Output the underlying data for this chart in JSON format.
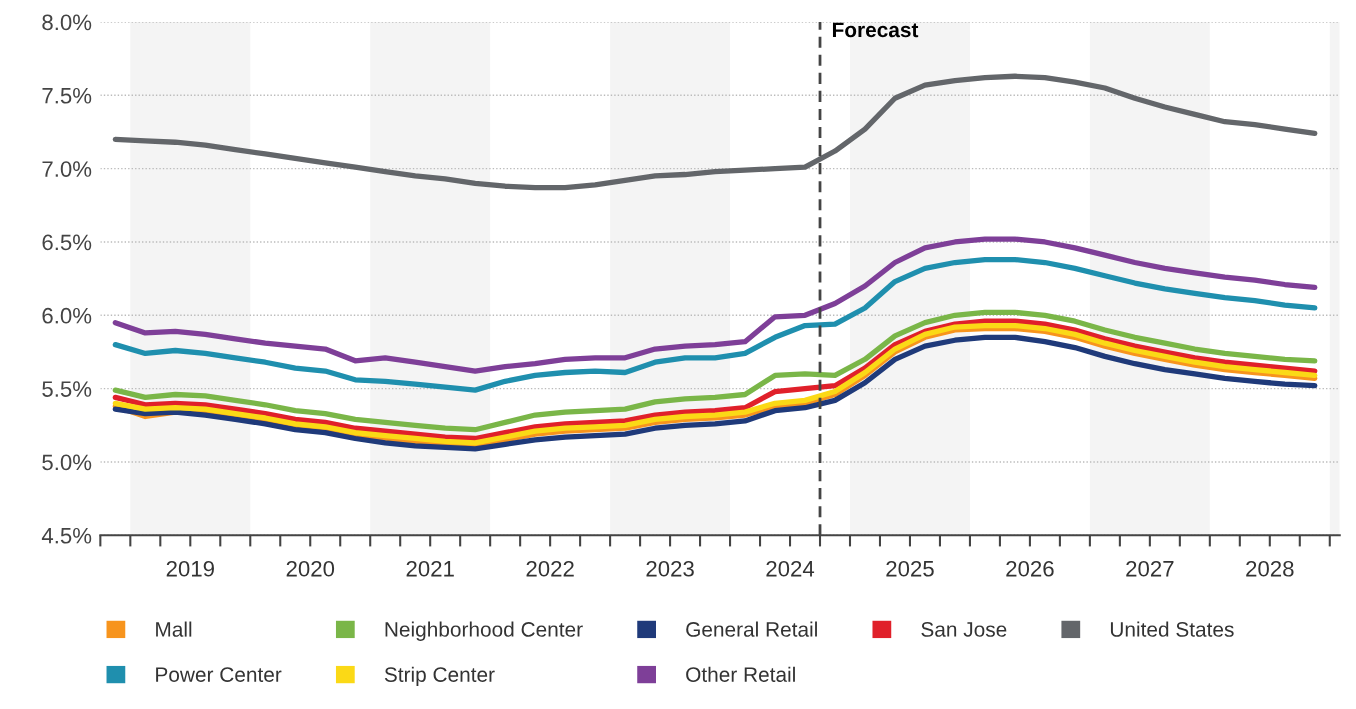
{
  "chart_data": {
    "type": "line",
    "x": [
      2018.875,
      2019.125,
      2019.375,
      2019.625,
      2019.875,
      2020.125,
      2020.375,
      2020.625,
      2020.875,
      2021.125,
      2021.375,
      2021.625,
      2021.875,
      2022.125,
      2022.375,
      2022.625,
      2022.875,
      2023.125,
      2023.375,
      2023.625,
      2023.875,
      2024.125,
      2024.375,
      2024.625,
      2024.875,
      2025.125,
      2025.375,
      2025.625,
      2025.875,
      2026.125,
      2026.375,
      2026.625,
      2026.875,
      2027.125,
      2027.375,
      2027.625,
      2027.875,
      2028.125,
      2028.375,
      2028.625,
      2028.875
    ],
    "series": [
      {
        "name": "Mall",
        "color": "#f7941d",
        "values": [
          5.38,
          5.31,
          5.34,
          5.34,
          5.31,
          5.28,
          5.24,
          5.22,
          5.18,
          5.16,
          5.14,
          5.12,
          5.11,
          5.15,
          5.19,
          5.21,
          5.22,
          5.23,
          5.27,
          5.29,
          5.3,
          5.32,
          5.38,
          5.4,
          5.46,
          5.59,
          5.75,
          5.85,
          5.9,
          5.91,
          5.91,
          5.89,
          5.85,
          5.79,
          5.74,
          5.7,
          5.66,
          5.63,
          5.61,
          5.59,
          5.57
        ]
      },
      {
        "name": "Neighborhood Center",
        "color": "#7ab648",
        "values": [
          5.49,
          5.44,
          5.46,
          5.45,
          5.42,
          5.39,
          5.35,
          5.33,
          5.29,
          5.27,
          5.25,
          5.23,
          5.22,
          5.27,
          5.32,
          5.34,
          5.35,
          5.36,
          5.41,
          5.43,
          5.44,
          5.46,
          5.59,
          5.6,
          5.59,
          5.7,
          5.86,
          5.95,
          6.0,
          6.02,
          6.02,
          6.0,
          5.96,
          5.9,
          5.85,
          5.81,
          5.77,
          5.74,
          5.72,
          5.7,
          5.69
        ]
      },
      {
        "name": "General Retail",
        "color": "#1f3a7a",
        "values": [
          5.36,
          5.33,
          5.34,
          5.32,
          5.29,
          5.26,
          5.22,
          5.2,
          5.16,
          5.13,
          5.11,
          5.1,
          5.09,
          5.12,
          5.15,
          5.17,
          5.18,
          5.19,
          5.23,
          5.25,
          5.26,
          5.28,
          5.35,
          5.37,
          5.42,
          5.54,
          5.7,
          5.79,
          5.83,
          5.85,
          5.85,
          5.82,
          5.78,
          5.72,
          5.67,
          5.63,
          5.6,
          5.57,
          5.55,
          5.53,
          5.52
        ]
      },
      {
        "name": "San Jose",
        "color": "#e0202a",
        "values": [
          5.44,
          5.39,
          5.4,
          5.39,
          5.36,
          5.33,
          5.29,
          5.27,
          5.23,
          5.21,
          5.19,
          5.17,
          5.16,
          5.2,
          5.24,
          5.26,
          5.27,
          5.28,
          5.32,
          5.34,
          5.35,
          5.37,
          5.48,
          5.5,
          5.52,
          5.64,
          5.8,
          5.89,
          5.94,
          5.96,
          5.96,
          5.94,
          5.9,
          5.84,
          5.79,
          5.75,
          5.71,
          5.68,
          5.66,
          5.64,
          5.62
        ]
      },
      {
        "name": "United States",
        "color": "#63666a",
        "values": [
          7.2,
          7.19,
          7.18,
          7.16,
          7.13,
          7.1,
          7.07,
          7.04,
          7.01,
          6.98,
          6.95,
          6.93,
          6.9,
          6.88,
          6.87,
          6.87,
          6.89,
          6.92,
          6.95,
          6.96,
          6.98,
          6.99,
          7.0,
          7.01,
          7.12,
          7.27,
          7.48,
          7.57,
          7.6,
          7.62,
          7.63,
          7.62,
          7.59,
          7.55,
          7.48,
          7.42,
          7.37,
          7.32,
          7.3,
          7.27,
          7.24
        ]
      },
      {
        "name": "Power Center",
        "color": "#1f8fae",
        "values": [
          5.8,
          5.74,
          5.76,
          5.74,
          5.71,
          5.68,
          5.64,
          5.62,
          5.56,
          5.55,
          5.53,
          5.51,
          5.49,
          5.55,
          5.59,
          5.61,
          5.62,
          5.61,
          5.68,
          5.71,
          5.71,
          5.74,
          5.85,
          5.93,
          5.94,
          6.05,
          6.23,
          6.32,
          6.36,
          6.38,
          6.38,
          6.36,
          6.32,
          6.27,
          6.22,
          6.18,
          6.15,
          6.12,
          6.1,
          6.07,
          6.05
        ]
      },
      {
        "name": "Strip Center",
        "color": "#fbd916",
        "values": [
          5.4,
          5.36,
          5.37,
          5.36,
          5.33,
          5.3,
          5.26,
          5.24,
          5.2,
          5.18,
          5.16,
          5.14,
          5.13,
          5.17,
          5.21,
          5.23,
          5.24,
          5.25,
          5.29,
          5.31,
          5.32,
          5.34,
          5.4,
          5.42,
          5.48,
          5.61,
          5.77,
          5.87,
          5.92,
          5.93,
          5.93,
          5.91,
          5.87,
          5.81,
          5.76,
          5.72,
          5.68,
          5.65,
          5.63,
          5.61,
          5.59
        ]
      },
      {
        "name": "Other Retail",
        "color": "#7e3f98",
        "values": [
          5.95,
          5.88,
          5.89,
          5.87,
          5.84,
          5.81,
          5.79,
          5.77,
          5.69,
          5.71,
          5.68,
          5.65,
          5.62,
          5.65,
          5.67,
          5.7,
          5.71,
          5.71,
          5.77,
          5.79,
          5.8,
          5.82,
          5.99,
          6.0,
          6.08,
          6.2,
          6.36,
          6.46,
          6.5,
          6.52,
          6.52,
          6.5,
          6.46,
          6.41,
          6.36,
          6.32,
          6.29,
          6.26,
          6.24,
          6.21,
          6.19
        ]
      }
    ],
    "xlim": [
      2018.75,
      2029.083
    ],
    "xticks": [
      {
        "value": 2018.75,
        "label": null
      },
      {
        "value": 2019.0,
        "label": null
      },
      {
        "value": 2019.25,
        "label": null
      },
      {
        "value": 2019.5,
        "label": "2019"
      },
      {
        "value": 2019.75,
        "label": null
      },
      {
        "value": 2020.0,
        "label": null
      },
      {
        "value": 2020.25,
        "label": null
      },
      {
        "value": 2020.5,
        "label": "2020"
      },
      {
        "value": 2020.75,
        "label": null
      },
      {
        "value": 2021.0,
        "label": null
      },
      {
        "value": 2021.25,
        "label": null
      },
      {
        "value": 2021.5,
        "label": "2021"
      },
      {
        "value": 2021.75,
        "label": null
      },
      {
        "value": 2022.0,
        "label": null
      },
      {
        "value": 2022.25,
        "label": null
      },
      {
        "value": 2022.5,
        "label": "2022"
      },
      {
        "value": 2022.75,
        "label": null
      },
      {
        "value": 2023.0,
        "label": null
      },
      {
        "value": 2023.25,
        "label": null
      },
      {
        "value": 2023.5,
        "label": "2023"
      },
      {
        "value": 2023.75,
        "label": null
      },
      {
        "value": 2024.0,
        "label": null
      },
      {
        "value": 2024.25,
        "label": null
      },
      {
        "value": 2024.5,
        "label": "2024"
      },
      {
        "value": 2024.75,
        "label": null
      },
      {
        "value": 2025.0,
        "label": null
      },
      {
        "value": 2025.25,
        "label": null
      },
      {
        "value": 2025.5,
        "label": "2025"
      },
      {
        "value": 2025.75,
        "label": null
      },
      {
        "value": 2026.0,
        "label": null
      },
      {
        "value": 2026.25,
        "label": null
      },
      {
        "value": 2026.5,
        "label": "2026"
      },
      {
        "value": 2026.75,
        "label": null
      },
      {
        "value": 2027.0,
        "label": null
      },
      {
        "value": 2027.25,
        "label": null
      },
      {
        "value": 2027.5,
        "label": "2027"
      },
      {
        "value": 2027.75,
        "label": null
      },
      {
        "value": 2028.0,
        "label": null
      },
      {
        "value": 2028.25,
        "label": null
      },
      {
        "value": 2028.5,
        "label": "2028"
      },
      {
        "value": 2028.75,
        "label": null
      },
      {
        "value": 2029.0,
        "label": null
      }
    ],
    "ylim": [
      4.5,
      8.0
    ],
    "yticks": [
      {
        "value": 4.5,
        "label": "4.5%"
      },
      {
        "value": 5.0,
        "label": "5.0%"
      },
      {
        "value": 5.5,
        "label": "5.5%"
      },
      {
        "value": 6.0,
        "label": "6.0%"
      },
      {
        "value": 6.5,
        "label": "6.5%"
      },
      {
        "value": 7.0,
        "label": "7.0%"
      },
      {
        "value": 7.5,
        "label": "7.5%"
      },
      {
        "value": 8.0,
        "label": "8.0%"
      }
    ],
    "ref_lines": [
      {
        "axis": "x",
        "value": 2024.75,
        "label": "Forecast",
        "color": "#444444",
        "line_style": "dashed"
      }
    ],
    "bands": [
      {
        "axis": "x",
        "from": 2019.0,
        "to": 2020.0,
        "color": "#f4f4f4"
      },
      {
        "axis": "x",
        "from": 2021.0,
        "to": 2022.0,
        "color": "#f4f4f4"
      },
      {
        "axis": "x",
        "from": 2023.0,
        "to": 2024.0,
        "color": "#f4f4f4"
      },
      {
        "axis": "x",
        "from": 2025.0,
        "to": 2026.0,
        "color": "#f4f4f4"
      },
      {
        "axis": "x",
        "from": 2027.0,
        "to": 2028.0,
        "color": "#f4f4f4"
      },
      {
        "axis": "x",
        "from": 2029.0,
        "to": 2029.083,
        "color": "#f4f4f4"
      }
    ],
    "grid": "y",
    "legend": "bottom",
    "marker": "none",
    "line_style": "solid"
  }
}
